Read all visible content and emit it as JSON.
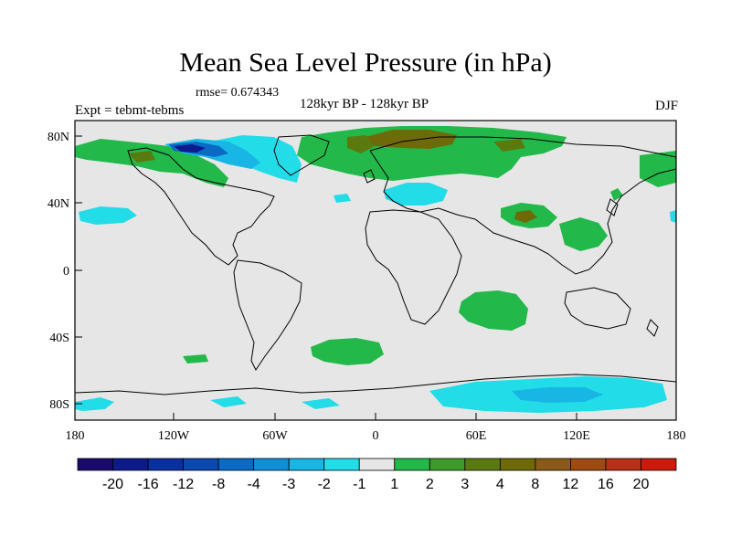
{
  "title": "Mean Sea Level Pressure (in hPa)",
  "rmse": "rmse= 0.674343",
  "experiment": "Expt = tebmt-tebms",
  "period": "128kyr BP - 128kyr BP",
  "season": "DJF",
  "lat_labels": [
    "80N",
    "40N",
    "0",
    "40S",
    "80S"
  ],
  "lon_labels": [
    "180",
    "120W",
    "60W",
    "0",
    "60E",
    "120E",
    "180"
  ],
  "colorbar": {
    "labels": [
      "-20",
      "-16",
      "-12",
      "-8",
      "-4",
      "-3",
      "-2",
      "-1",
      "1",
      "2",
      "3",
      "4",
      "8",
      "12",
      "16",
      "20"
    ],
    "colors": [
      "#1a0a6e",
      "#0c1a8c",
      "#0a2fa0",
      "#0b48b0",
      "#0a6ac4",
      "#0f90d6",
      "#18b6e4",
      "#22dce8",
      "#e6e6e6",
      "#22b84a",
      "#3e9a2a",
      "#5a7a10",
      "#6e6a08",
      "#8a5a18",
      "#9e4a12",
      "#b83018",
      "#cc1a0e"
    ]
  },
  "colors": {
    "background_field": "#e6e6e6",
    "coastline": "#000000"
  }
}
